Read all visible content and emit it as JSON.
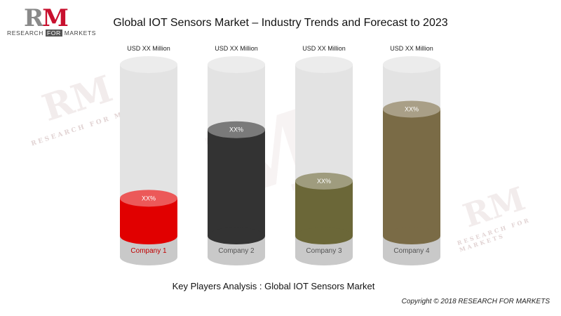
{
  "logo": {
    "letters_r": "R",
    "letters_m": "M",
    "tagline_a": "RESEARCH ",
    "tagline_for": "FOR",
    "tagline_b": " MARKETS"
  },
  "watermark": {
    "letters": "RM",
    "big_letter": "M",
    "tagline": "RESEARCH FOR MARKETS"
  },
  "title": "Global IOT Sensors Market – Industry Trends and Forecast to 2023",
  "footer_label": "Key Players Analysis : Global IOT Sensors Market",
  "copyright": "Copyright © 2018 RESEARCH FOR MARKETS",
  "chart_data": {
    "type": "bar",
    "style": "cylinder",
    "ylim": [
      0,
      100
    ],
    "unit_label": "USD XX Million",
    "categories": [
      "Company 1",
      "Company 2",
      "Company 3",
      "Company 4"
    ],
    "values": [
      22,
      62,
      32,
      74
    ],
    "value_labels": [
      "XX%",
      "XX%",
      "XX%",
      "XX%"
    ],
    "colors": [
      "#e10000",
      "#333333",
      "#6b6738",
      "#7a6b46"
    ],
    "track_color": "#e3e3e3",
    "base_color": "#c9c9c9"
  }
}
